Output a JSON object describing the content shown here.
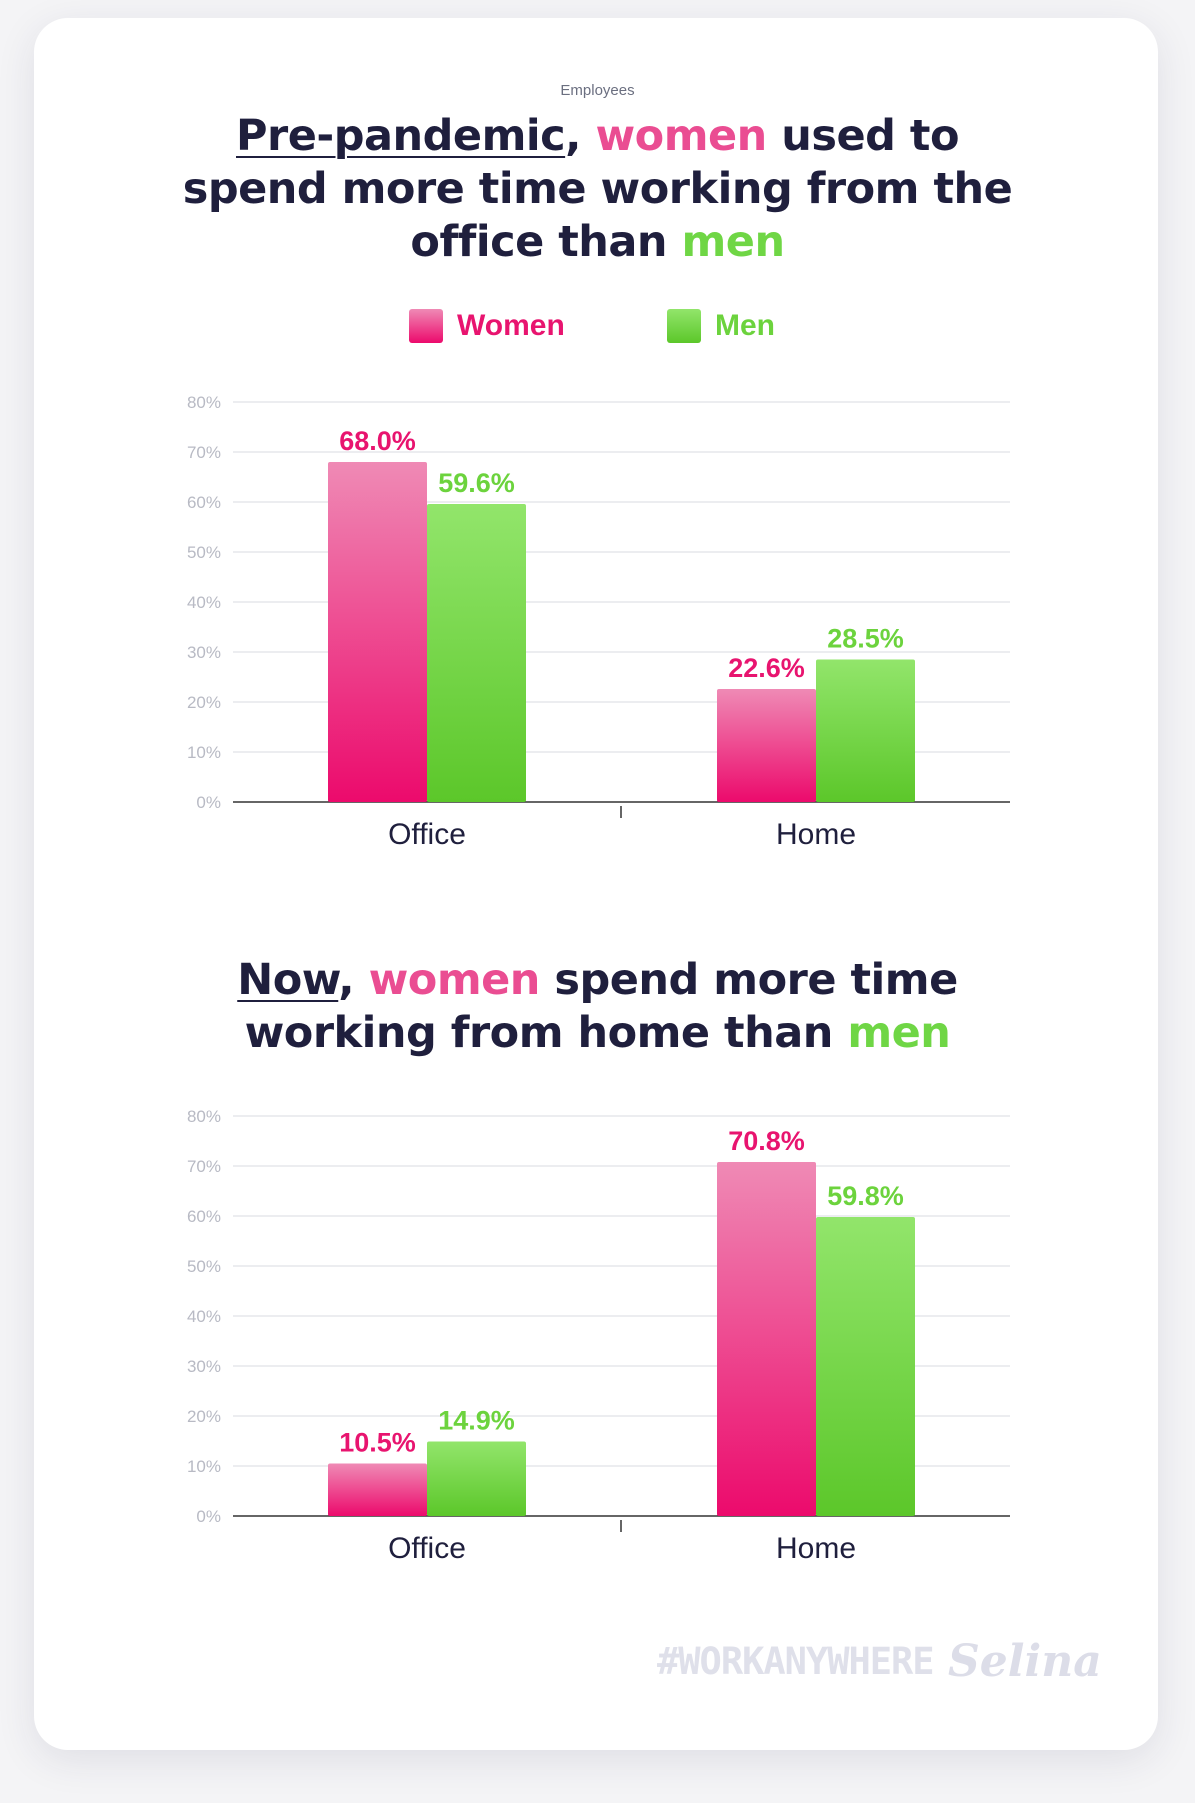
{
  "eyebrow": "Employees",
  "headline1": {
    "part1": "Pre-pandemic",
    "part2": ", ",
    "women": "women",
    "part3": " used to",
    "line2": "spend more time working from the",
    "part4": "office than ",
    "men": "men"
  },
  "headline2": {
    "part1": "Now",
    "part2": ", ",
    "women": "women",
    "part3": " spend more time",
    "part4": "working from home than ",
    "men": "men"
  },
  "legend": {
    "women": "Women",
    "men": "Men"
  },
  "colors": {
    "women_top": "#ef8ab5",
    "women_bottom": "#ec0a6c",
    "men_top": "#92e56b",
    "men_bottom": "#5cc72a",
    "women_text": "#e8146f",
    "men_text": "#6cd33d",
    "gridline": "#e6e7ec",
    "axis": "#333333"
  },
  "footer": {
    "tag": "#WORKANYWHERE",
    "logo": "Selina"
  },
  "chart_data": [
    {
      "type": "bar",
      "categories": [
        "Office",
        "Home"
      ],
      "series": [
        {
          "name": "Women",
          "values": [
            68.0,
            22.6
          ]
        },
        {
          "name": "Men",
          "values": [
            59.6,
            28.5
          ]
        }
      ],
      "value_labels": [
        [
          "68.0%",
          "22.6%"
        ],
        [
          "59.6%",
          "28.5%"
        ]
      ],
      "yticks": [
        "0%",
        "10%",
        "20%",
        "30%",
        "40%",
        "50%",
        "60%",
        "70%",
        "80%"
      ],
      "ylim": [
        0,
        80
      ],
      "grid": true,
      "legend": "top-center"
    },
    {
      "type": "bar",
      "categories": [
        "Office",
        "Home"
      ],
      "series": [
        {
          "name": "Women",
          "values": [
            10.5,
            70.8
          ]
        },
        {
          "name": "Men",
          "values": [
            14.9,
            59.8
          ]
        }
      ],
      "value_labels": [
        [
          "10.5%",
          "70.8%"
        ],
        [
          "14.9%",
          "59.8%"
        ]
      ],
      "yticks": [
        "0%",
        "10%",
        "20%",
        "30%",
        "40%",
        "50%",
        "60%",
        "70%",
        "80%"
      ],
      "ylim": [
        0,
        80
      ],
      "grid": true,
      "legend": "none"
    }
  ]
}
